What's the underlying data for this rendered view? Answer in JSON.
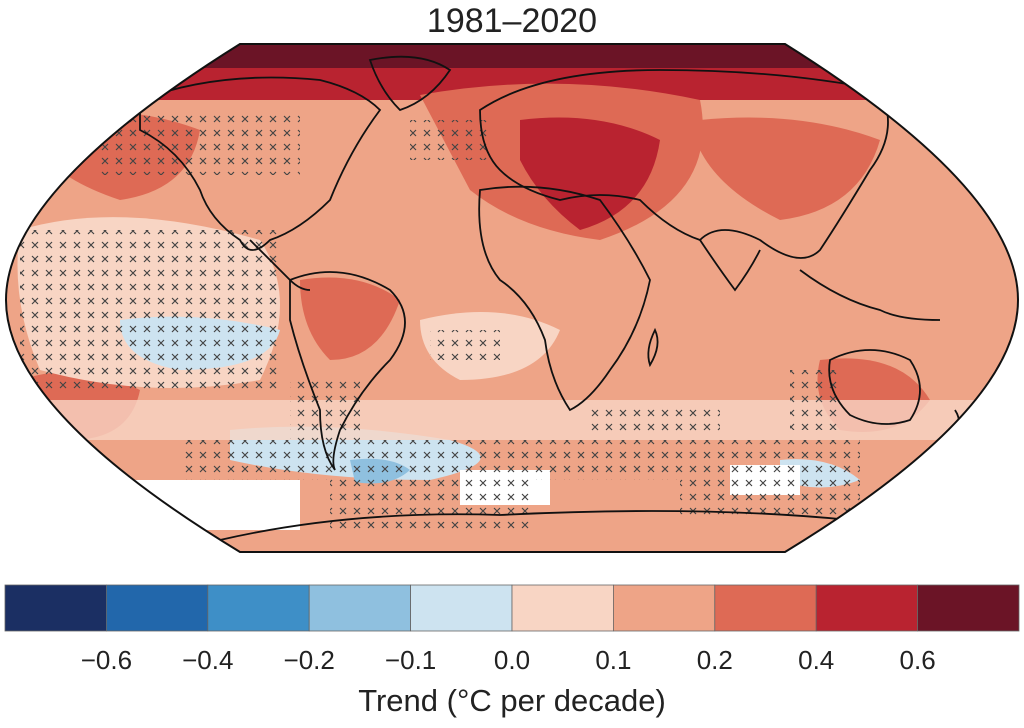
{
  "title": "1981–2020",
  "colorbar": {
    "label": "Trend (°C per decade)",
    "colors": [
      "#1b2f63",
      "#2267ab",
      "#3e8fc7",
      "#8fc0df",
      "#cde3f0",
      "#f8d5c4",
      "#eea487",
      "#de6a55",
      "#b92330",
      "#6b1426"
    ],
    "tick_labels": [
      "−0.6",
      "−0.4",
      "−0.2",
      "−0.1",
      "0.0",
      "0.1",
      "0.2",
      "0.4",
      "0.6"
    ]
  },
  "legend_colors": {
    "land_outline": "#111111",
    "no_data": "#ffffff",
    "hatch_mark": "#444444"
  }
}
